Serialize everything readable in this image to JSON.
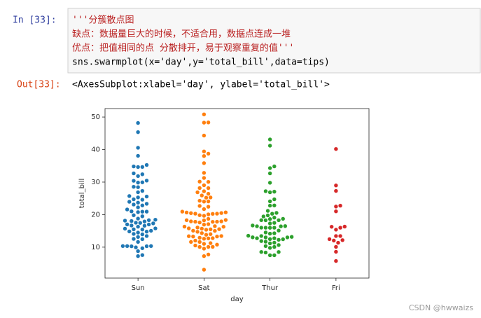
{
  "notebook": {
    "input_prompt": "In  [33]:",
    "code_lines": [
      "'''分簇散点图",
      "缺点：数据量巨大的时候，不适合用，数据点连成一堆",
      "优点：把值相同的点 分散排开，易于观察重复的值'''",
      "sns.swarmplot(x='day',y='total_bill',data=tips)"
    ],
    "output_prompt": "Out[33]:",
    "output_text": "<AxesSubplot:xlabel='day', ylabel='total_bill'>",
    "watermark": "CSDN @hwwaizs"
  },
  "chart_data": {
    "type": "swarm",
    "x_label": "day",
    "y_label": "total_bill",
    "categories": [
      "Sun",
      "Sat",
      "Thur",
      "Fri"
    ],
    "colors": [
      "#1f77b4",
      "#ff7f0e",
      "#2ca02c",
      "#d62728"
    ],
    "values": [
      [
        16.99,
        10.34,
        21.01,
        23.68,
        24.59,
        25.29,
        8.77,
        26.88,
        15.04,
        14.78,
        10.27,
        35.26,
        15.42,
        18.43,
        14.83,
        21.58,
        10.33,
        16.29,
        16.97,
        17.46,
        13.94,
        9.68,
        30.4,
        18.29,
        22.23,
        32.4,
        28.55,
        18.04,
        12.54,
        10.29,
        34.81,
        9.94,
        25.56,
        19.49,
        38.07,
        23.95,
        25.71,
        17.31,
        29.93,
        48.17,
        45.35,
        40.55,
        7.25,
        34.63,
        34.65,
        23.33,
        31.85,
        22.82,
        32.68,
        14.48,
        20.9,
        18.15,
        23.1,
        15.69,
        19.81,
        28.44,
        15.48,
        16.58,
        7.56,
        10.34,
        12.46,
        20.76,
        24.71,
        15.76,
        17.89,
        11.61,
        17.51,
        14.07,
        13.13,
        20.92,
        16.66,
        13.42,
        30.46,
        18.78,
        27.28,
        29.85
      ],
      [
        20.65,
        17.92,
        20.29,
        15.77,
        39.42,
        19.82,
        17.81,
        13.37,
        12.69,
        21.7,
        19.65,
        9.55,
        18.35,
        15.06,
        20.69,
        17.78,
        24.06,
        16.31,
        16.93,
        18.69,
        31.27,
        16.04,
        38.01,
        26.41,
        11.24,
        48.27,
        20.29,
        13.81,
        11.02,
        18.29,
        17.59,
        20.08,
        16.45,
        3.07,
        20.23,
        15.01,
        12.02,
        17.07,
        26.86,
        25.28,
        14.73,
        10.51,
        17.92,
        44.3,
        22.42,
        20.92,
        15.36,
        20.49,
        25.21,
        18.24,
        14.31,
        14.0,
        7.25,
        38.73,
        24.27,
        12.76,
        30.06,
        25.89,
        48.33,
        13.27,
        28.17,
        12.9,
        28.15,
        11.59,
        7.74,
        30.14,
        50.81,
        15.48,
        10.07,
        20.45,
        13.28,
        24.01,
        15.69,
        11.61,
        10.77,
        15.53,
        10.07,
        12.6,
        32.83,
        35.83,
        29.03,
        27.18,
        22.67,
        17.82,
        13.42,
        16.27,
        10.09
      ],
      [
        27.2,
        22.76,
        17.29,
        19.44,
        16.66,
        10.07,
        32.68,
        15.98,
        34.83,
        13.03,
        18.28,
        24.71,
        21.16,
        10.65,
        12.43,
        24.08,
        11.69,
        13.42,
        14.26,
        15.95,
        12.48,
        29.8,
        8.52,
        14.52,
        11.38,
        22.82,
        19.08,
        20.27,
        11.17,
        12.26,
        18.26,
        8.51,
        10.33,
        14.15,
        16.0,
        13.16,
        17.47,
        34.3,
        41.19,
        27.05,
        16.43,
        8.35,
        18.64,
        11.87,
        9.78,
        7.51,
        19.77,
        43.11,
        13.0,
        12.74,
        13.0,
        16.4,
        20.53,
        16.47,
        15.98,
        13.51,
        18.71,
        12.74,
        26.86,
        15.1,
        7.51,
        18.29
      ],
      [
        28.97,
        22.49,
        5.75,
        16.32,
        22.75,
        40.17,
        27.28,
        12.03,
        21.01,
        12.46,
        11.35,
        15.38,
        12.16,
        13.42,
        8.58,
        15.98,
        13.42,
        16.27,
        10.09
      ]
    ],
    "ylim": [
      0.5,
      52.6
    ],
    "yticks": [
      10,
      20,
      30,
      40,
      50
    ]
  }
}
